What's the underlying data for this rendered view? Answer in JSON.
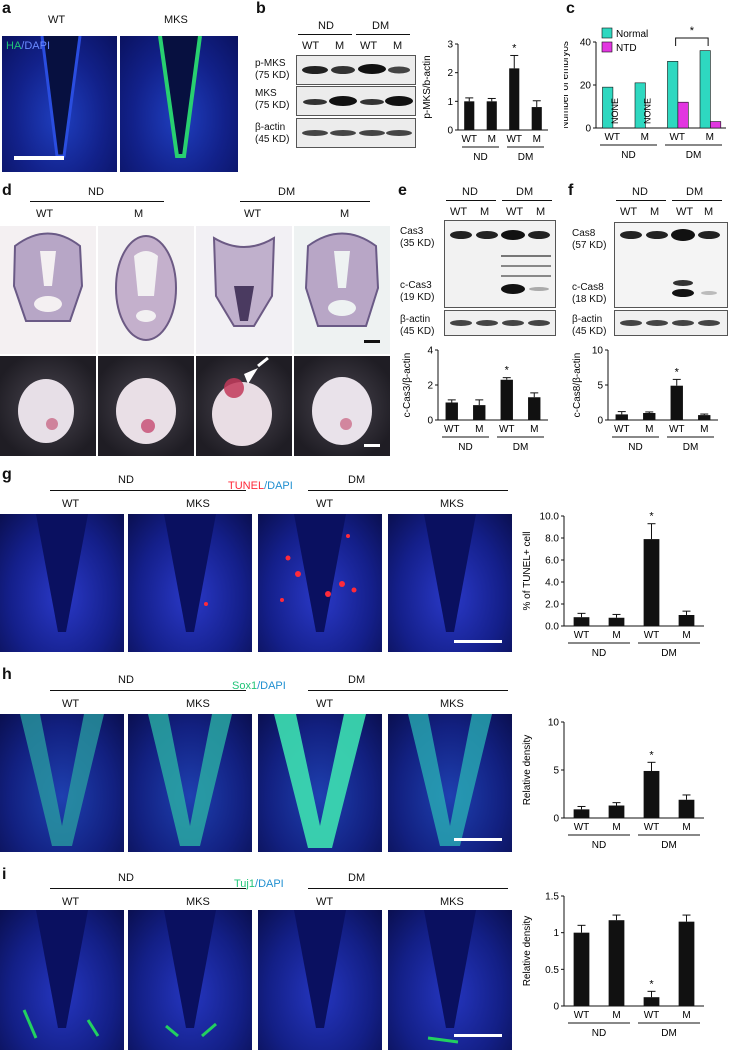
{
  "figure": {
    "panel_labels": [
      "a",
      "b",
      "c",
      "d",
      "e",
      "f",
      "g",
      "h",
      "i"
    ],
    "colors": {
      "blue": "#1d2aa8",
      "green": "#21c478",
      "red": "#ff2a3a",
      "black": "#111111",
      "normal": "#2ed8c0",
      "ntd": "#e236e0"
    },
    "a": {
      "wt": "WT",
      "mks": "MKS",
      "stain_ha": "HA",
      "stain_sep": "/",
      "stain_dapi": "DAPI"
    },
    "b": {
      "groups": [
        "ND",
        "DM"
      ],
      "lanes": [
        "WT",
        "M",
        "WT",
        "M"
      ],
      "rows": [
        "p-MKS",
        "MKS",
        "β-actin"
      ],
      "sizes": [
        "(75 KD)",
        "(75 KD)",
        "(45 KD)"
      ]
    },
    "e": {
      "groups": [
        "ND",
        "DM"
      ],
      "lanes": [
        "WT",
        "M",
        "WT",
        "M"
      ],
      "rows": [
        "Cas3",
        "c-Cas3",
        "β-actin"
      ],
      "sizes": [
        "(35 KD)",
        "(19 KD)",
        "(45 KD)"
      ]
    },
    "f": {
      "groups": [
        "ND",
        "DM"
      ],
      "lanes": [
        "WT",
        "M",
        "WT",
        "M"
      ],
      "rows": [
        "Cas8",
        "c-Cas8",
        "β-actin"
      ],
      "sizes": [
        "(57 KD)",
        "(18 KD)",
        "(45 KD)"
      ]
    },
    "d": {
      "groups": [
        "ND",
        "DM"
      ],
      "lanes": [
        "WT",
        "M",
        "WT",
        "M"
      ]
    },
    "g": {
      "groups": [
        "ND",
        "DM"
      ],
      "lanes": [
        "WT",
        "MKS",
        "WT",
        "MKS"
      ],
      "stain_a": "TUNEL",
      "stain_sep": "/",
      "stain_b": "DAPI"
    },
    "h": {
      "groups": [
        "ND",
        "DM"
      ],
      "lanes": [
        "WT",
        "MKS",
        "WT",
        "MKS"
      ],
      "stain_a": "Sox1",
      "stain_sep": "/",
      "stain_b": "DAPI"
    },
    "i": {
      "groups": [
        "ND",
        "DM"
      ],
      "lanes": [
        "WT",
        "MKS",
        "WT",
        "MKS"
      ],
      "stain_a": "Tuj1",
      "stain_sep": "/",
      "stain_b": "DAPI"
    }
  },
  "chart_data": [
    {
      "id": "b",
      "type": "bar",
      "categories": [
        "WT",
        "M",
        "WT",
        "M"
      ],
      "groups": [
        "ND",
        "DM"
      ],
      "values": [
        1.0,
        1.0,
        2.15,
        0.8
      ],
      "errors": [
        0.12,
        0.1,
        0.45,
        0.22
      ],
      "ylabel": "p-MKS/b-actin",
      "ylim": [
        0,
        3
      ],
      "yticks": [
        0,
        1,
        2,
        3
      ],
      "significance": [
        "",
        "",
        "*",
        ""
      ]
    },
    {
      "id": "c",
      "type": "bar",
      "categories": [
        "WT",
        "M",
        "WT",
        "M"
      ],
      "groups": [
        "ND",
        "DM"
      ],
      "series": [
        {
          "name": "Normal",
          "values": [
            19,
            21,
            31,
            36
          ]
        },
        {
          "name": "NTD",
          "values": [
            0,
            0,
            12,
            3
          ]
        }
      ],
      "annotations": [
        "NONE",
        "NONE"
      ],
      "ylabel": "Number of embryos",
      "ylim": [
        0,
        40
      ],
      "yticks": [
        0,
        20,
        40
      ],
      "significance": "*"
    },
    {
      "id": "e",
      "type": "bar",
      "categories": [
        "WT",
        "M",
        "WT",
        "M"
      ],
      "groups": [
        "ND",
        "DM"
      ],
      "values": [
        1.0,
        0.85,
        2.3,
        1.3
      ],
      "errors": [
        0.15,
        0.3,
        0.12,
        0.25
      ],
      "ylabel": "c-Cas3/β-actin",
      "ylim": [
        0,
        4
      ],
      "yticks": [
        0,
        2,
        4
      ],
      "significance": [
        "",
        "",
        "*",
        ""
      ]
    },
    {
      "id": "f",
      "type": "bar",
      "categories": [
        "WT",
        "M",
        "WT",
        "M"
      ],
      "groups": [
        "ND",
        "DM"
      ],
      "values": [
        0.8,
        1.0,
        4.9,
        0.7
      ],
      "errors": [
        0.4,
        0.15,
        0.9,
        0.15
      ],
      "ylabel": "c-Cas8/β-actin",
      "ylim": [
        0,
        10
      ],
      "yticks": [
        0,
        5,
        10
      ],
      "significance": [
        "",
        "",
        "*",
        ""
      ]
    },
    {
      "id": "g",
      "type": "bar",
      "categories": [
        "WT",
        "M",
        "WT",
        "M"
      ],
      "groups": [
        "ND",
        "DM"
      ],
      "values": [
        0.8,
        0.75,
        7.9,
        1.0
      ],
      "errors": [
        0.35,
        0.3,
        1.4,
        0.35
      ],
      "ylabel": "% of TUNEL+ cell",
      "ylim": [
        0,
        10
      ],
      "yticks": [
        "0.0",
        "2.0",
        "4.0",
        "6.0",
        "8.0",
        "10.0"
      ],
      "significance": [
        "",
        "",
        "*",
        ""
      ]
    },
    {
      "id": "h",
      "type": "bar",
      "categories": [
        "WT",
        "M",
        "WT",
        "M"
      ],
      "groups": [
        "ND",
        "DM"
      ],
      "values": [
        0.9,
        1.3,
        4.9,
        1.9
      ],
      "errors": [
        0.3,
        0.3,
        0.9,
        0.5
      ],
      "ylabel": "Relative density",
      "ylim": [
        0,
        10
      ],
      "yticks": [
        0,
        5,
        10
      ],
      "significance": [
        "",
        "",
        "*",
        ""
      ]
    },
    {
      "id": "i",
      "type": "bar",
      "categories": [
        "WT",
        "M",
        "WT",
        "M"
      ],
      "groups": [
        "ND",
        "DM"
      ],
      "values": [
        1.0,
        1.17,
        0.12,
        1.15
      ],
      "errors": [
        0.1,
        0.07,
        0.08,
        0.09
      ],
      "ylabel": "Relative density",
      "ylim": [
        0,
        1.5
      ],
      "yticks": [
        0,
        0.5,
        1,
        1.5
      ],
      "significance": [
        "",
        "",
        "*",
        ""
      ]
    }
  ]
}
